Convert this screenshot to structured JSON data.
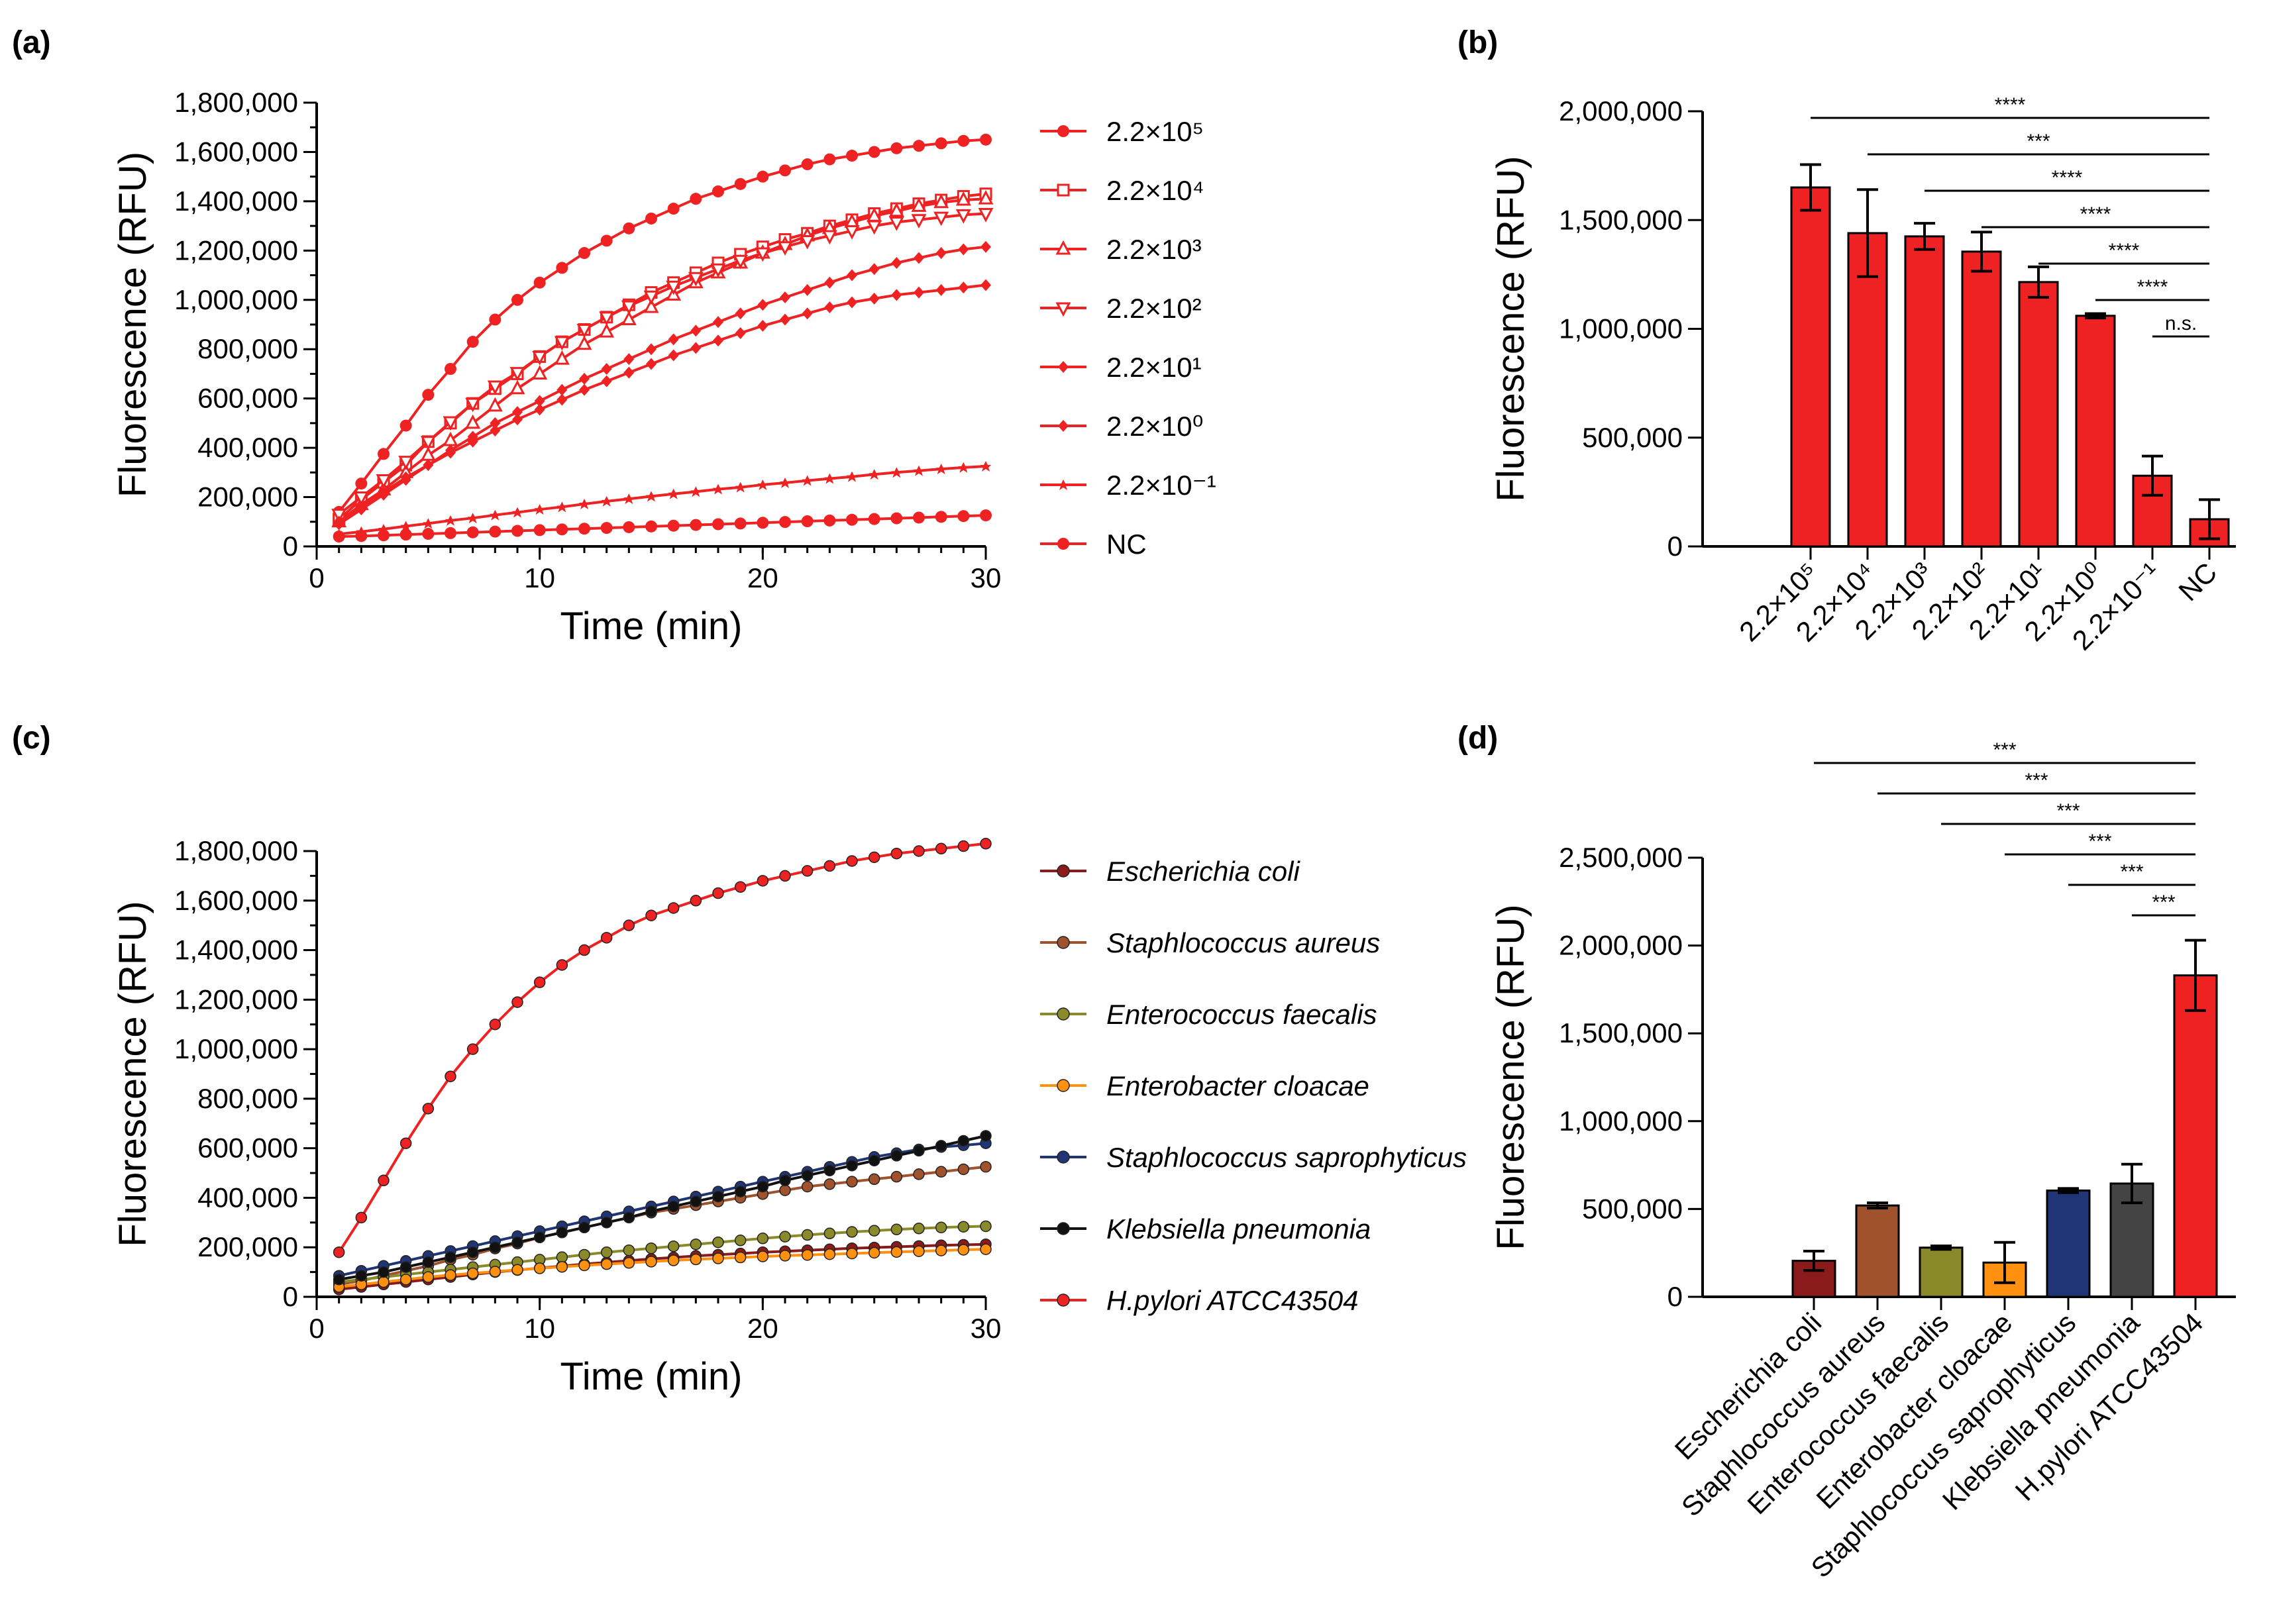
{
  "panels": {
    "a": "(a)",
    "b": "(b)",
    "c": "(c)",
    "d": "(d)"
  },
  "chart_data": [
    {
      "panel": "a",
      "type": "line",
      "title": "",
      "xlabel": "Time (min)",
      "ylabel": "Fluorescence (RFU)",
      "xlim": [
        0,
        30
      ],
      "ylim": [
        0,
        1800000
      ],
      "xticks": [
        "0",
        "10",
        "20",
        "30"
      ],
      "yticks": [
        "0",
        "200,000",
        "400,000",
        "600,000",
        "800,000",
        "1,000,000",
        "1,200,000",
        "1,400,000",
        "1,600,000",
        "1,800,000"
      ],
      "x": [
        1,
        2,
        3,
        4,
        5,
        6,
        7,
        8,
        9,
        10,
        11,
        12,
        13,
        14,
        15,
        16,
        17,
        18,
        19,
        20,
        21,
        22,
        23,
        24,
        25,
        26,
        27,
        28,
        29,
        30
      ],
      "series": [
        {
          "name": "2.2×10⁵",
          "marker": "circle",
          "color": "#ee2222",
          "values": [
            140000,
            255000,
            375000,
            490000,
            615000,
            720000,
            830000,
            920000,
            1000000,
            1070000,
            1130000,
            1190000,
            1240000,
            1290000,
            1330000,
            1370000,
            1410000,
            1440000,
            1470000,
            1500000,
            1525000,
            1550000,
            1570000,
            1585000,
            1600000,
            1615000,
            1625000,
            1635000,
            1645000,
            1650000
          ]
        },
        {
          "name": "2.2×10⁴",
          "marker": "square-open",
          "color": "#ee2222",
          "values": [
            110000,
            190000,
            260000,
            330000,
            425000,
            500000,
            580000,
            640000,
            700000,
            770000,
            830000,
            880000,
            930000,
            980000,
            1030000,
            1070000,
            1110000,
            1150000,
            1185000,
            1215000,
            1245000,
            1270000,
            1300000,
            1325000,
            1350000,
            1370000,
            1390000,
            1405000,
            1420000,
            1430000
          ]
        },
        {
          "name": "2.2×10³",
          "marker": "triangle-open",
          "color": "#ee2222",
          "values": [
            100000,
            170000,
            230000,
            300000,
            370000,
            430000,
            500000,
            570000,
            640000,
            700000,
            760000,
            820000,
            870000,
            920000,
            970000,
            1020000,
            1070000,
            1110000,
            1150000,
            1190000,
            1225000,
            1260000,
            1290000,
            1315000,
            1340000,
            1360000,
            1380000,
            1395000,
            1405000,
            1410000
          ]
        },
        {
          "name": "2.2×10²",
          "marker": "triangle-down-open",
          "color": "#ee2222",
          "values": [
            130000,
            200000,
            270000,
            345000,
            425000,
            505000,
            580000,
            650000,
            705000,
            770000,
            830000,
            880000,
            930000,
            975000,
            1015000,
            1055000,
            1090000,
            1125000,
            1160000,
            1190000,
            1215000,
            1240000,
            1260000,
            1280000,
            1300000,
            1315000,
            1325000,
            1335000,
            1345000,
            1350000
          ]
        },
        {
          "name": "2.2×10¹",
          "marker": "diamond",
          "color": "#ee2222",
          "values": [
            90000,
            150000,
            210000,
            270000,
            330000,
            390000,
            445000,
            500000,
            545000,
            590000,
            635000,
            680000,
            720000,
            760000,
            800000,
            840000,
            875000,
            910000,
            945000,
            980000,
            1010000,
            1040000,
            1070000,
            1100000,
            1125000,
            1150000,
            1170000,
            1190000,
            1205000,
            1215000
          ]
        },
        {
          "name": "2.2×10⁰",
          "marker": "diamond",
          "color": "#ee2222",
          "values": [
            100000,
            160000,
            220000,
            280000,
            330000,
            380000,
            425000,
            470000,
            515000,
            555000,
            595000,
            635000,
            670000,
            705000,
            740000,
            775000,
            805000,
            835000,
            865000,
            895000,
            920000,
            945000,
            970000,
            990000,
            1005000,
            1020000,
            1030000,
            1040000,
            1050000,
            1060000
          ]
        },
        {
          "name": "2.2×10⁻¹",
          "marker": "star",
          "color": "#ee2222",
          "values": [
            50000,
            60000,
            70000,
            82000,
            93000,
            105000,
            115000,
            127000,
            138000,
            150000,
            160000,
            172000,
            183000,
            193000,
            203000,
            213000,
            222000,
            232000,
            240000,
            250000,
            258000,
            267000,
            275000,
            283000,
            292000,
            300000,
            307000,
            314000,
            320000,
            325000
          ]
        },
        {
          "name": "NC",
          "marker": "circle",
          "color": "#ee2222",
          "values": [
            40000,
            42000,
            45000,
            48000,
            51000,
            54000,
            57000,
            60000,
            63000,
            66000,
            69000,
            72000,
            75000,
            78000,
            81000,
            84000,
            87000,
            90000,
            93000,
            96000,
            99000,
            102000,
            105000,
            108000,
            111000,
            114000,
            117000,
            120000,
            123000,
            126000
          ]
        }
      ]
    },
    {
      "panel": "b",
      "type": "bar",
      "title": "",
      "xlabel": "",
      "ylabel": "Fluorescence (RFU)",
      "ylim": [
        0,
        2000000
      ],
      "yticks": [
        "0",
        "500,000",
        "1,000,000",
        "1,500,000",
        "2,000,000"
      ],
      "categories": [
        "2.2×10⁵",
        "2.2×10⁴",
        "2.2×10³",
        "2.2×10²",
        "2.2×10¹",
        "2.2×10⁰",
        "2.2×10⁻¹",
        "NC"
      ],
      "values": [
        1650000,
        1440000,
        1425000,
        1355000,
        1215000,
        1060000,
        325000,
        125000
      ],
      "errors": [
        105000,
        200000,
        60000,
        90000,
        70000,
        10000,
        90000,
        90000
      ],
      "color": "#ee2222",
      "significance": [
        {
          "from": 0,
          "to": 7,
          "label": "****"
        },
        {
          "from": 1,
          "to": 7,
          "label": "***"
        },
        {
          "from": 2,
          "to": 7,
          "label": "****"
        },
        {
          "from": 3,
          "to": 7,
          "label": "****"
        },
        {
          "from": 4,
          "to": 7,
          "label": "****"
        },
        {
          "from": 5,
          "to": 7,
          "label": "****"
        },
        {
          "from": 6,
          "to": 7,
          "label": "n.s."
        }
      ]
    },
    {
      "panel": "c",
      "type": "line",
      "title": "",
      "xlabel": "Time (min)",
      "ylabel": "Fluorescence (RFU)",
      "xlim": [
        0,
        30
      ],
      "ylim": [
        0,
        1800000
      ],
      "xticks": [
        "0",
        "10",
        "20",
        "30"
      ],
      "yticks": [
        "0",
        "200,000",
        "400,000",
        "600,000",
        "800,000",
        "1,000,000",
        "1,200,000",
        "1,400,000",
        "1,600,000",
        "1,800,000"
      ],
      "x": [
        1,
        2,
        3,
        4,
        5,
        6,
        7,
        8,
        9,
        10,
        11,
        12,
        13,
        14,
        15,
        16,
        17,
        18,
        19,
        20,
        21,
        22,
        23,
        24,
        25,
        26,
        27,
        28,
        29,
        30
      ],
      "series": [
        {
          "name": "Escherichia coli",
          "color": "#8b1a1a",
          "values": [
            30000,
            40000,
            50000,
            60000,
            70000,
            80000,
            90000,
            100000,
            108000,
            116000,
            124000,
            132000,
            139000,
            146000,
            153000,
            159000,
            165000,
            170000,
            175000,
            180000,
            184000,
            188000,
            192000,
            196000,
            199000,
            202000,
            205000,
            208000,
            210000,
            212000
          ]
        },
        {
          "name": "Staphlococcus aureus",
          "color": "#a0522d",
          "values": [
            50000,
            65000,
            85000,
            105000,
            125000,
            150000,
            170000,
            195000,
            215000,
            240000,
            260000,
            280000,
            300000,
            320000,
            340000,
            355000,
            370000,
            385000,
            400000,
            415000,
            430000,
            445000,
            455000,
            465000,
            475000,
            485000,
            495000,
            505000,
            515000,
            525000
          ]
        },
        {
          "name": "Enterococcus faecalis",
          "color": "#8a8a2a",
          "values": [
            60000,
            70000,
            80000,
            90000,
            100000,
            110000,
            120000,
            130000,
            140000,
            150000,
            160000,
            170000,
            180000,
            188000,
            196000,
            204000,
            212000,
            220000,
            228000,
            236000,
            243000,
            250000,
            256000,
            262000,
            267000,
            272000,
            276000,
            280000,
            283000,
            285000
          ]
        },
        {
          "name": "Enterobacter cloacae",
          "color": "#ff9010",
          "values": [
            40000,
            50000,
            60000,
            70000,
            80000,
            88000,
            95000,
            102000,
            109000,
            115000,
            121000,
            127000,
            132000,
            137000,
            142000,
            147000,
            151000,
            155000,
            159000,
            163000,
            166000,
            169000,
            172000,
            175000,
            178000,
            181000,
            184000,
            187000,
            190000,
            192000
          ]
        },
        {
          "name": "Staphlococcus saprophyticus",
          "color": "#1f3575",
          "values": [
            85000,
            105000,
            125000,
            145000,
            165000,
            185000,
            205000,
            225000,
            245000,
            265000,
            285000,
            305000,
            325000,
            345000,
            365000,
            385000,
            405000,
            425000,
            445000,
            465000,
            485000,
            505000,
            525000,
            545000,
            565000,
            580000,
            595000,
            605000,
            612000,
            620000
          ]
        },
        {
          "name": "Klebsiella pneumonia",
          "color": "#111111",
          "values": [
            70000,
            85000,
            100000,
            120000,
            140000,
            160000,
            180000,
            200000,
            220000,
            240000,
            260000,
            280000,
            300000,
            320000,
            345000,
            365000,
            385000,
            405000,
            425000,
            445000,
            470000,
            490000,
            510000,
            530000,
            550000,
            570000,
            590000,
            610000,
            630000,
            650000
          ]
        },
        {
          "name": "H.pylori ATCC43504",
          "color": "#ee2222",
          "values": [
            180000,
            320000,
            470000,
            620000,
            760000,
            890000,
            1000000,
            1100000,
            1190000,
            1270000,
            1340000,
            1400000,
            1450000,
            1500000,
            1540000,
            1570000,
            1600000,
            1630000,
            1655000,
            1680000,
            1700000,
            1720000,
            1740000,
            1760000,
            1775000,
            1790000,
            1800000,
            1810000,
            1820000,
            1830000
          ]
        }
      ]
    },
    {
      "panel": "d",
      "type": "bar",
      "title": "",
      "xlabel": "",
      "ylabel": "Fluorescence (RFU)",
      "ylim": [
        0,
        2500000
      ],
      "yticks": [
        "0",
        "500,000",
        "1,000,000",
        "1,500,000",
        "2,000,000",
        "2,500,000"
      ],
      "categories": [
        "Escherichia coli",
        "Staphlococcus aureus",
        "Enterococcus faecalis",
        "Enterobacter cloacae",
        "Staphlococcus saprophyticus",
        "Klebsiella pneumonia",
        "H.pylori ATCC43504"
      ],
      "values": [
        205000,
        520000,
        280000,
        195000,
        605000,
        645000,
        1830000
      ],
      "errors": [
        55000,
        15000,
        10000,
        115000,
        12000,
        110000,
        200000
      ],
      "colors": [
        "#8b1a1a",
        "#a0522d",
        "#8a8a2a",
        "#ff9010",
        "#1f3575",
        "#444444",
        "#ee2222"
      ],
      "significance": [
        {
          "from": 0,
          "to": 6,
          "label": "***"
        },
        {
          "from": 1,
          "to": 6,
          "label": "***"
        },
        {
          "from": 2,
          "to": 6,
          "label": "***"
        },
        {
          "from": 3,
          "to": 6,
          "label": "***"
        },
        {
          "from": 4,
          "to": 6,
          "label": "***"
        },
        {
          "from": 5,
          "to": 6,
          "label": "***"
        }
      ]
    }
  ]
}
